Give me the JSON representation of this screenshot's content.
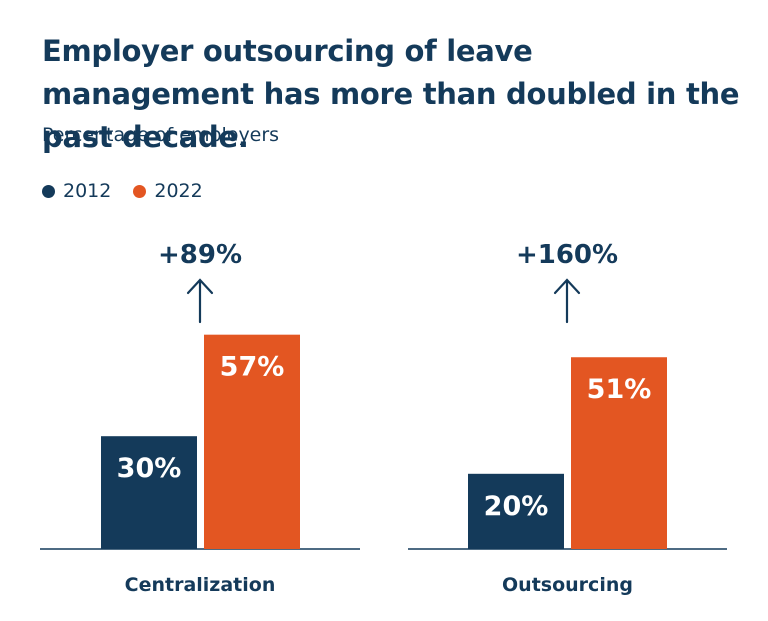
{
  "title": "Employer outsourcing of leave management has more than doubled in the past decade.",
  "subtitle": "Percentage of employers",
  "colors": {
    "2012": "#143a5a",
    "2022": "#e35622",
    "text": "#143a5a"
  },
  "chart_data": {
    "type": "bar",
    "title": "Employer outsourcing of leave management has more than doubled in the past decade.",
    "subtitle": "Percentage of employers",
    "categories": [
      "Centralization",
      "Outsourcing"
    ],
    "series": [
      {
        "name": "2012",
        "values": [
          30,
          20
        ],
        "labels": [
          "30%",
          "20%"
        ]
      },
      {
        "name": "2022",
        "values": [
          57,
          51
        ],
        "labels": [
          "57%",
          "51%"
        ]
      }
    ],
    "changes": [
      "+89%",
      "+160%"
    ],
    "legend": "top-left",
    "grid": false,
    "ylim": [
      0,
      60
    ]
  }
}
